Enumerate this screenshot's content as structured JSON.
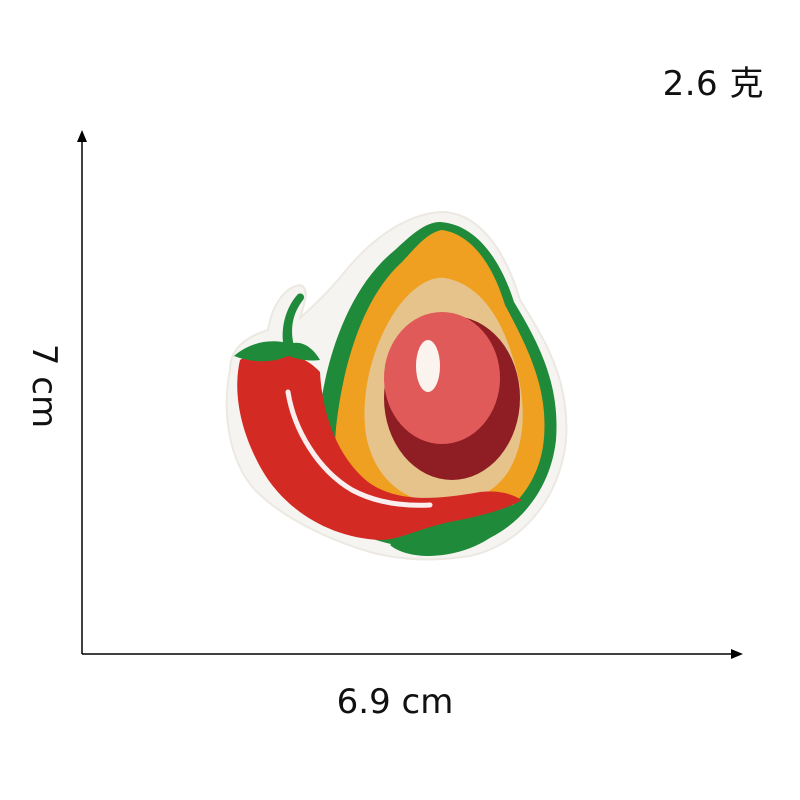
{
  "product": {
    "weight_label": "2.6 克",
    "width_label": "6.9 cm",
    "height_label": "7 cm"
  },
  "icons": {
    "patch": "chili-pepper-avocado-embroidered-patch-icon"
  },
  "colors": {
    "background": "#ffffff",
    "axis": "#000000",
    "pepper_red": "#d42a24",
    "leaf_green": "#1f8a3a",
    "avocado_orange": "#f0a020",
    "avocado_tan": "#e6c38a",
    "pit_pink": "#e05a5a",
    "pit_shadow": "#8e1e24"
  }
}
